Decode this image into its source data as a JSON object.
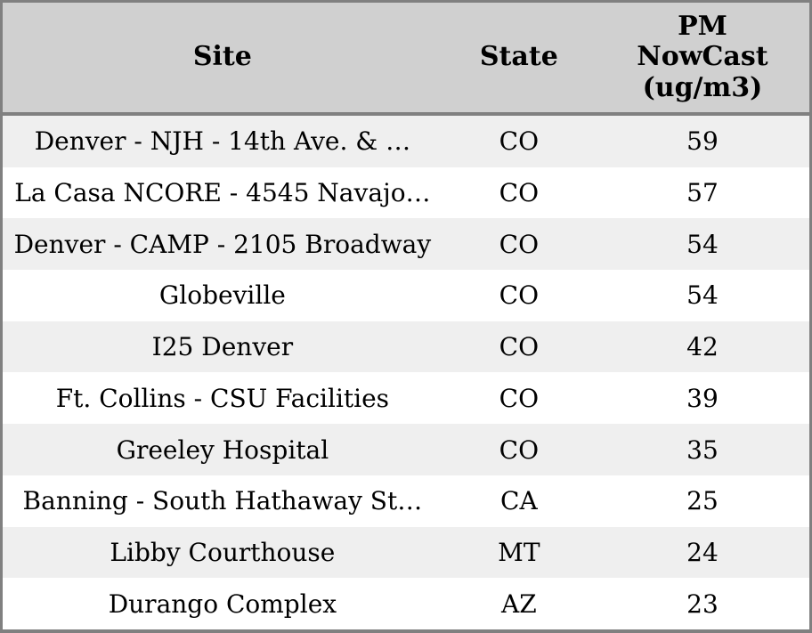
{
  "chart_data": {
    "type": "table",
    "columns": [
      "Site",
      "State",
      "PM NowCast (ug/m3)"
    ],
    "rows": [
      {
        "site": "Denver - NJH - 14th Ave. & …",
        "state": "CO",
        "pm_nowcast": "59"
      },
      {
        "site": "La Casa NCORE - 4545 Navajo…",
        "state": "CO",
        "pm_nowcast": "57"
      },
      {
        "site": "Denver - CAMP - 2105 Broadway",
        "state": "CO",
        "pm_nowcast": "54"
      },
      {
        "site": "Globeville",
        "state": "CO",
        "pm_nowcast": "54"
      },
      {
        "site": "I25 Denver",
        "state": "CO",
        "pm_nowcast": "42"
      },
      {
        "site": "Ft. Collins - CSU Facilities",
        "state": "CO",
        "pm_nowcast": "39"
      },
      {
        "site": "Greeley Hospital",
        "state": "CO",
        "pm_nowcast": "35"
      },
      {
        "site": "Banning - South Hathaway St…",
        "state": "CA",
        "pm_nowcast": "25"
      },
      {
        "site": "Libby Courthouse",
        "state": "MT",
        "pm_nowcast": "24"
      },
      {
        "site": "Durango Complex",
        "state": "AZ",
        "pm_nowcast": "23"
      }
    ]
  },
  "colors": {
    "border": "#808080",
    "header_bg": "#d0d0d0",
    "row_odd_bg": "#efefef",
    "row_even_bg": "#ffffff",
    "text": "#000000"
  }
}
